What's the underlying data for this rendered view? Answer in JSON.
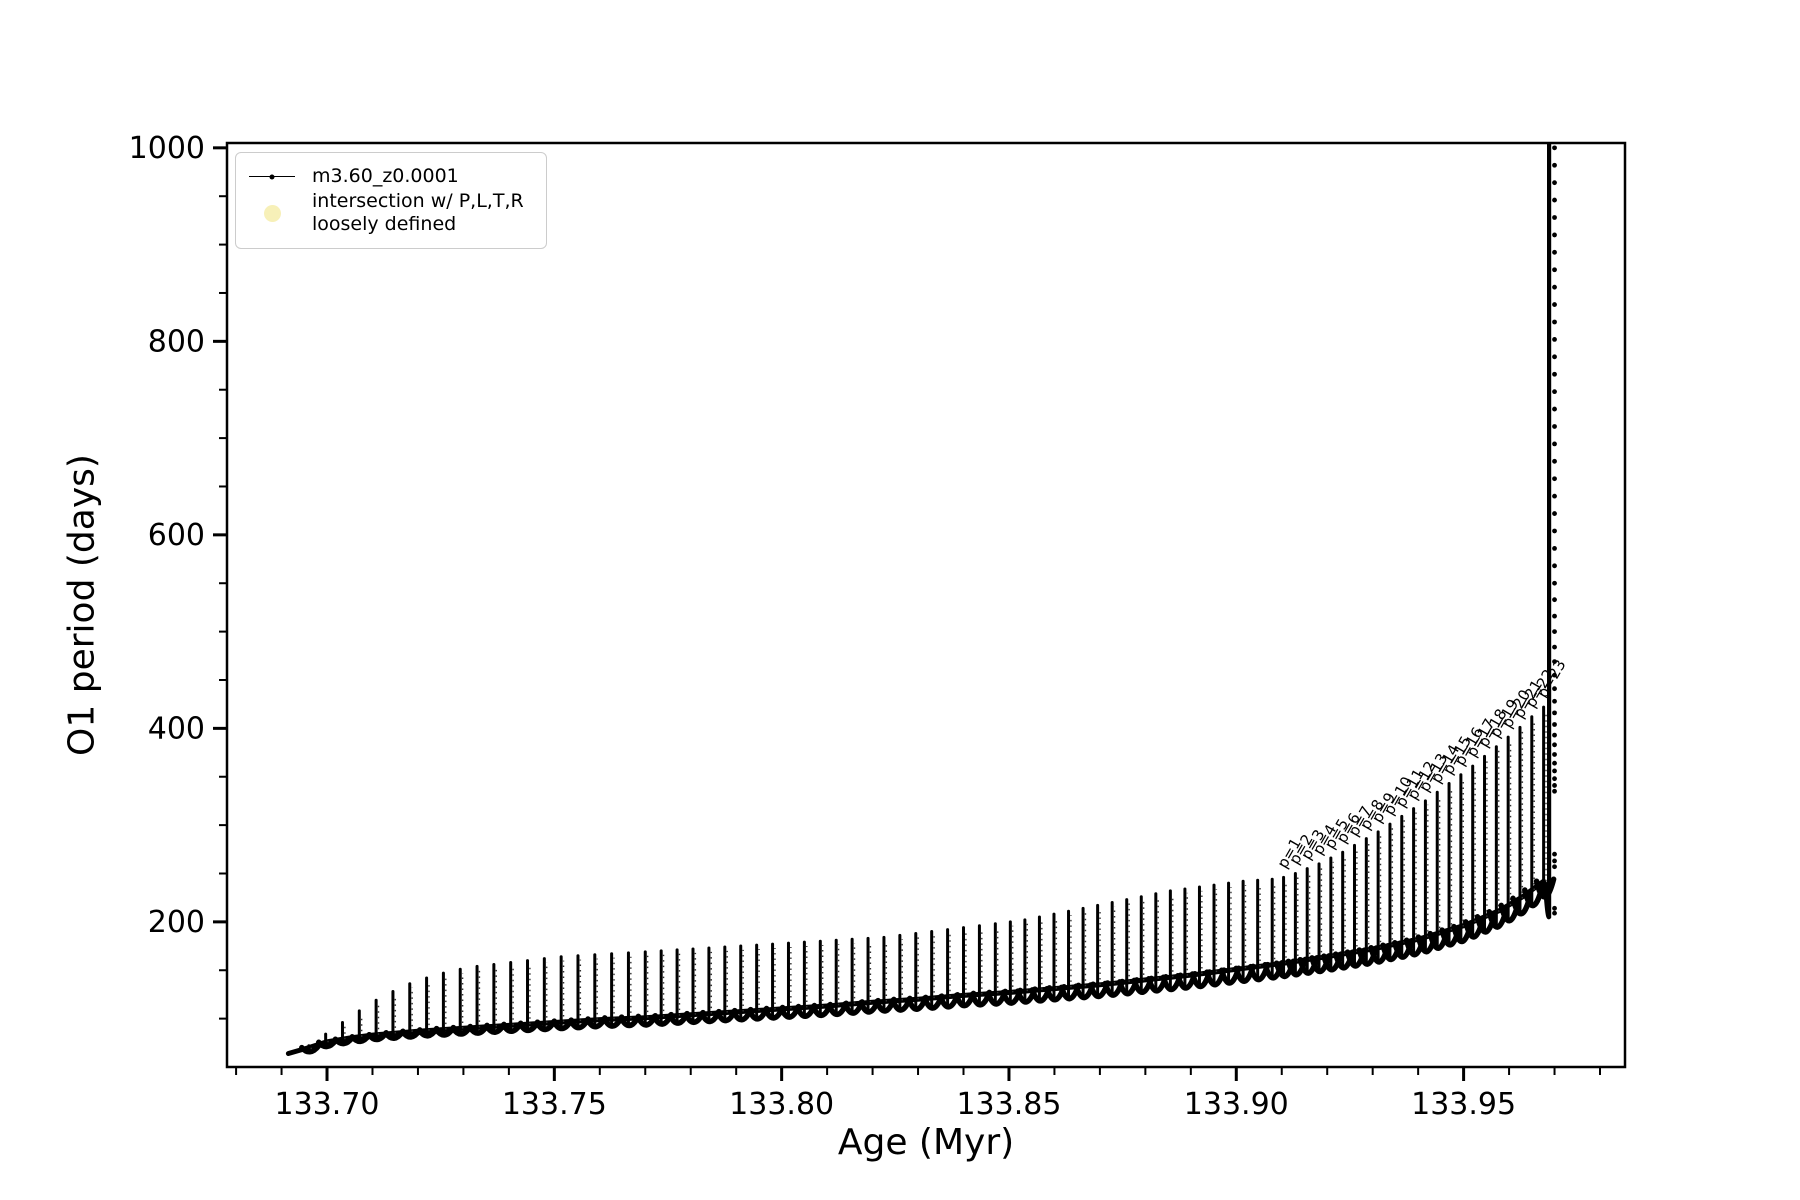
{
  "figure": {
    "background": "#ffffff"
  },
  "legend": {
    "entries": [
      {
        "type": "line-with-dot-marker",
        "label": "m3.60_z0.0001",
        "color": "#000000"
      },
      {
        "type": "circle-marker",
        "label_line1": "intersection w/ P,L,T,R",
        "label_line2": "loosely defined",
        "color": "#f7f0b8"
      }
    ]
  },
  "chart_data": {
    "type": "line",
    "title": "",
    "xlabel": "Age (Myr)",
    "ylabel": "O1 period (days)",
    "xlim": [
      133.678,
      133.9855
    ],
    "ylim": [
      50,
      1005
    ],
    "grid": false,
    "legend_position": "upper left",
    "x_major_ticks": [
      133.7,
      133.75,
      133.8,
      133.85,
      133.9,
      133.95
    ],
    "x_tick_labels": [
      "133.70",
      "133.75",
      "133.80",
      "133.85",
      "133.90",
      "133.95"
    ],
    "x_minor_step": 0.01,
    "y_major_ticks": [
      200,
      400,
      600,
      800,
      1000
    ],
    "y_tick_labels": [
      "200",
      "400",
      "600",
      "800",
      "1000"
    ],
    "y_minor_step": 50,
    "series_name": "m3.60_z0.0001",
    "line_color": "#000000",
    "baseline": [
      [
        133.6915,
        64
      ],
      [
        133.696,
        70
      ],
      [
        133.7,
        76
      ],
      [
        133.705,
        80
      ],
      [
        133.71,
        83
      ],
      [
        133.72,
        87
      ],
      [
        133.73,
        90
      ],
      [
        133.74,
        93
      ],
      [
        133.75,
        96
      ],
      [
        133.76,
        99
      ],
      [
        133.77,
        101
      ],
      [
        133.78,
        104
      ],
      [
        133.79,
        107
      ],
      [
        133.8,
        110
      ],
      [
        133.81,
        113
      ],
      [
        133.82,
        117
      ],
      [
        133.83,
        120
      ],
      [
        133.84,
        124
      ],
      [
        133.85,
        127
      ],
      [
        133.86,
        131
      ],
      [
        133.87,
        135
      ],
      [
        133.88,
        140
      ],
      [
        133.89,
        145
      ],
      [
        133.9,
        151
      ],
      [
        133.91,
        157
      ],
      [
        133.92,
        164
      ],
      [
        133.93,
        172
      ],
      [
        133.94,
        182
      ],
      [
        133.95,
        196
      ],
      [
        133.958,
        212
      ],
      [
        133.963,
        226
      ],
      [
        133.9676,
        242
      ],
      [
        133.9685,
        230
      ]
    ],
    "pulses": [
      [
        133.696,
        72
      ],
      [
        133.6997,
        84
      ],
      [
        133.7034,
        96
      ],
      [
        133.7071,
        108
      ],
      [
        133.7108,
        119
      ],
      [
        133.7145,
        128
      ],
      [
        133.7182,
        136
      ],
      [
        133.7219,
        142
      ],
      [
        133.7256,
        147
      ],
      [
        133.7293,
        151
      ],
      [
        133.733,
        154
      ],
      [
        133.7367,
        156
      ],
      [
        133.7404,
        158
      ],
      [
        133.7441,
        160
      ],
      [
        133.7478,
        162
      ],
      [
        133.7515,
        164
      ],
      [
        133.7552,
        165
      ],
      [
        133.7589,
        166
      ],
      [
        133.7626,
        167
      ],
      [
        133.7663,
        168
      ],
      [
        133.77,
        169
      ],
      [
        133.7735,
        170
      ],
      [
        133.777,
        171
      ],
      [
        133.7805,
        172
      ],
      [
        133.784,
        173
      ],
      [
        133.7875,
        174
      ],
      [
        133.791,
        175
      ],
      [
        133.7945,
        176
      ],
      [
        133.798,
        177
      ],
      [
        133.8015,
        178
      ],
      [
        133.805,
        179
      ],
      [
        133.8085,
        180
      ],
      [
        133.812,
        181
      ],
      [
        133.8155,
        182
      ],
      [
        133.819,
        183
      ],
      [
        133.8225,
        184
      ],
      [
        133.826,
        186
      ],
      [
        133.8295,
        188
      ],
      [
        133.833,
        190
      ],
      [
        133.8365,
        192
      ],
      [
        133.84,
        194
      ],
      [
        133.8435,
        196
      ],
      [
        133.847,
        198
      ],
      [
        133.8503,
        200
      ],
      [
        133.8535,
        202
      ],
      [
        133.8567,
        205
      ],
      [
        133.8599,
        208
      ],
      [
        133.8631,
        211
      ],
      [
        133.8663,
        214
      ],
      [
        133.8695,
        217
      ],
      [
        133.8727,
        220
      ],
      [
        133.8759,
        223
      ],
      [
        133.8791,
        226
      ],
      [
        133.8823,
        229
      ],
      [
        133.8855,
        232
      ],
      [
        133.8887,
        234
      ],
      [
        133.8919,
        236
      ],
      [
        133.8951,
        238
      ],
      [
        133.8983,
        240
      ],
      [
        133.9015,
        242
      ],
      [
        133.9047,
        243
      ],
      [
        133.9079,
        244
      ]
    ],
    "labeled_pulses": [
      {
        "label": "p=1",
        "age": 133.9104,
        "peak": 246
      },
      {
        "label": "p=2",
        "age": 133.913,
        "peak": 250
      },
      {
        "label": "p=3",
        "age": 133.9156,
        "peak": 255
      },
      {
        "label": "p=4",
        "age": 133.9182,
        "peak": 260
      },
      {
        "label": "p=5",
        "age": 133.9208,
        "peak": 266
      },
      {
        "label": "p=6",
        "age": 133.9234,
        "peak": 272
      },
      {
        "label": "p=7",
        "age": 133.926,
        "peak": 279
      },
      {
        "label": "p=8",
        "age": 133.9286,
        "peak": 286
      },
      {
        "label": "p=9",
        "age": 133.9312,
        "peak": 293
      },
      {
        "label": "p=10",
        "age": 133.9338,
        "peak": 301
      },
      {
        "label": "p=11",
        "age": 133.9364,
        "peak": 309
      },
      {
        "label": "p=12",
        "age": 133.939,
        "peak": 317
      },
      {
        "label": "p=13",
        "age": 133.9416,
        "peak": 325
      },
      {
        "label": "p=14",
        "age": 133.9442,
        "peak": 334
      },
      {
        "label": "p=15",
        "age": 133.9468,
        "peak": 343
      },
      {
        "label": "p=16",
        "age": 133.9494,
        "peak": 352
      },
      {
        "label": "p=17",
        "age": 133.952,
        "peak": 361
      },
      {
        "label": "p=18",
        "age": 133.9546,
        "peak": 371
      },
      {
        "label": "p=19",
        "age": 133.9572,
        "peak": 381
      },
      {
        "label": "p=20",
        "age": 133.9598,
        "peak": 391
      },
      {
        "label": "p=21",
        "age": 133.9624,
        "peak": 401
      },
      {
        "label": "p=22",
        "age": 133.965,
        "peak": 412
      },
      {
        "label": "p=23",
        "age": 133.9676,
        "peak": 422
      }
    ],
    "annotation_rotation_deg": 60,
    "terminal_rise": {
      "age": 133.9688,
      "period_from": 205,
      "period_to": 1005
    },
    "post_descent": {
      "age": 133.97,
      "periods": [
        1000,
        982,
        964,
        946,
        928,
        910,
        892,
        874,
        856,
        838,
        820,
        802,
        784,
        766,
        748,
        730,
        712,
        694,
        676,
        658,
        640,
        622,
        604,
        586,
        568,
        550,
        533,
        516,
        500,
        484,
        469,
        455,
        441,
        428,
        416,
        404,
        393,
        383,
        373,
        364,
        356,
        348,
        341,
        335,
        270,
        263,
        257,
        214,
        209
      ]
    },
    "dip_depth_days": [
      6,
      22
    ]
  }
}
